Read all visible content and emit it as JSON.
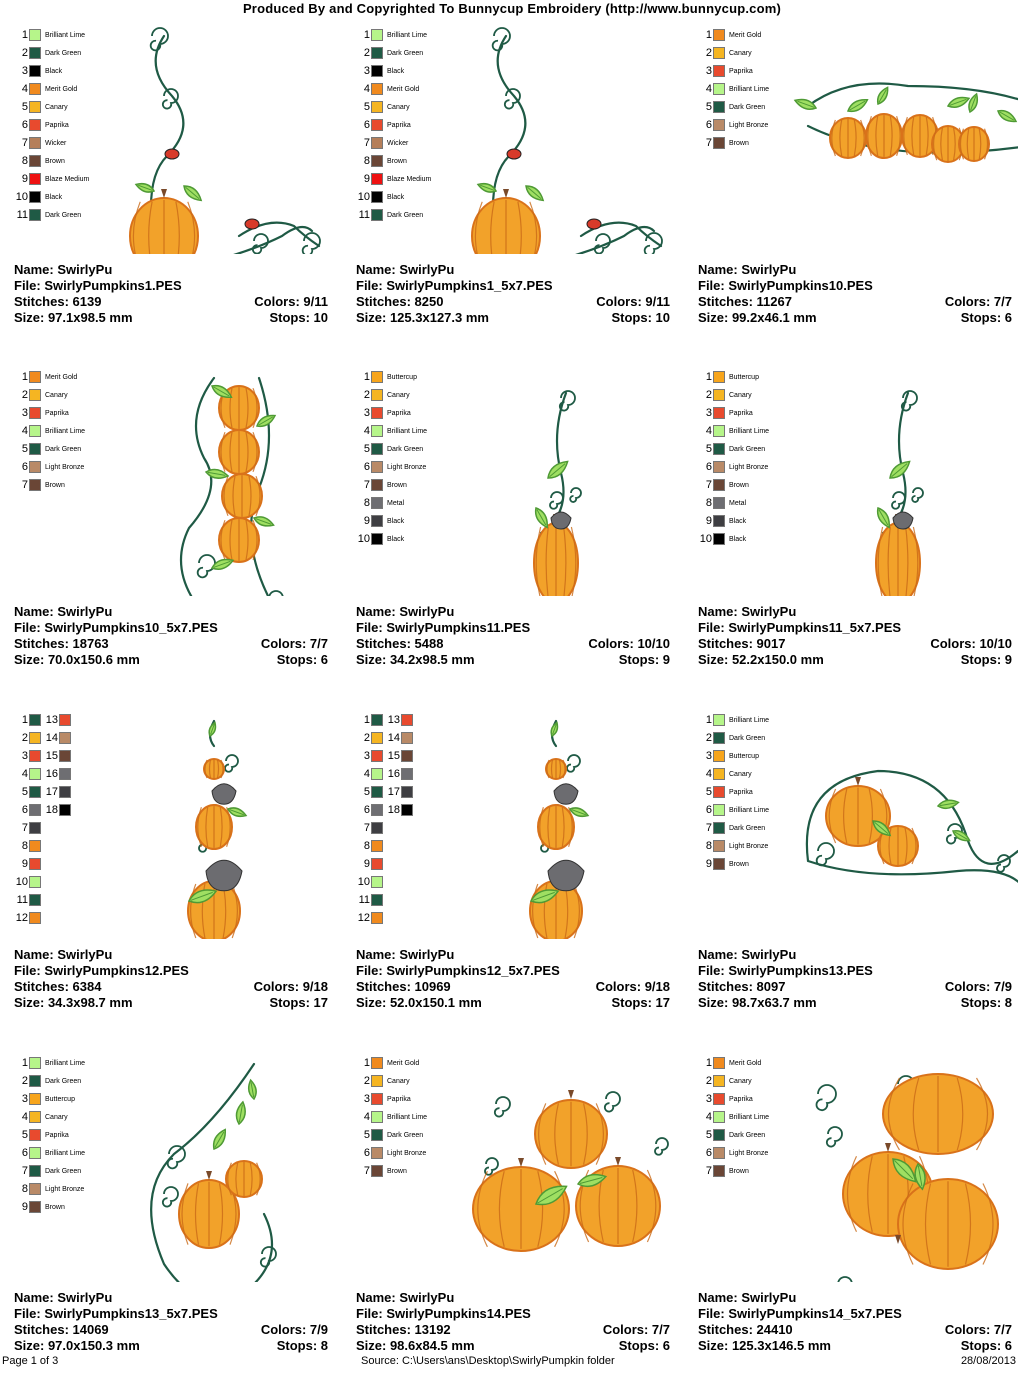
{
  "header": "Produced By and Copyrighted To Bunnycup Embroidery (http://www.bunnycup.com)",
  "labels": {
    "name": "Name:",
    "file": "File:",
    "stitches": "Stitches:",
    "size": "Size:",
    "colors": "Colors:",
    "stops": "Stops:"
  },
  "palette": {
    "Brilliant Lime": "#b6f58a",
    "Dark Green": "#1f5a45",
    "Black": "#000000",
    "Merit Gold": "#f08a1e",
    "Canary": "#f5b522",
    "Paprika": "#e84a2e",
    "Wicker": "#b57f5a",
    "Brown": "#6a4636",
    "Blaze Medium": "#ee1111",
    "Light Bronze": "#b98a67",
    "Buttercup": "#f7a51c",
    "Metal": "#6e6e72",
    "Charcoal": "#3e3e42"
  },
  "designs": [
    {
      "name": "SwirlyPu",
      "file": "SwirlyPumpkins1.PES",
      "stitches": "6139",
      "size": "97.1x98.5 mm",
      "colors": "9/11",
      "stops": "10",
      "motif": "corner-vine",
      "legend": [
        {
          "n": "1",
          "c": "Brilliant Lime",
          "label": "Brilliant Lime"
        },
        {
          "n": "2",
          "c": "Dark Green",
          "label": "Dark Green"
        },
        {
          "n": "3",
          "c": "Black",
          "label": "Black"
        },
        {
          "n": "4",
          "c": "Merit Gold",
          "label": "Merit Gold"
        },
        {
          "n": "5",
          "c": "Canary",
          "label": "Canary"
        },
        {
          "n": "6",
          "c": "Paprika",
          "label": "Paprika"
        },
        {
          "n": "7",
          "c": "Wicker",
          "label": "Wicker"
        },
        {
          "n": "8",
          "c": "Brown",
          "label": "Brown"
        },
        {
          "n": "9",
          "c": "Blaze Medium",
          "label": "Blaze Medium"
        },
        {
          "n": "10",
          "c": "Black",
          "label": "Black"
        },
        {
          "n": "11",
          "c": "Dark Green",
          "label": "Dark Green"
        }
      ]
    },
    {
      "name": "SwirlyPu",
      "file": "SwirlyPumpkins1_5x7.PES",
      "stitches": "8250",
      "size": "125.3x127.3 mm",
      "colors": "9/11",
      "stops": "10",
      "motif": "corner-vine",
      "legend": [
        {
          "n": "1",
          "c": "Brilliant Lime",
          "label": "Brilliant Lime"
        },
        {
          "n": "2",
          "c": "Dark Green",
          "label": "Dark Green"
        },
        {
          "n": "3",
          "c": "Black",
          "label": "Black"
        },
        {
          "n": "4",
          "c": "Merit Gold",
          "label": "Merit Gold"
        },
        {
          "n": "5",
          "c": "Canary",
          "label": "Canary"
        },
        {
          "n": "6",
          "c": "Paprika",
          "label": "Paprika"
        },
        {
          "n": "7",
          "c": "Wicker",
          "label": "Wicker"
        },
        {
          "n": "8",
          "c": "Brown",
          "label": "Brown"
        },
        {
          "n": "9",
          "c": "Blaze Medium",
          "label": "Blaze Medium"
        },
        {
          "n": "10",
          "c": "Black",
          "label": "Black"
        },
        {
          "n": "11",
          "c": "Dark Green",
          "label": "Dark Green"
        }
      ]
    },
    {
      "name": "SwirlyPu",
      "file": "SwirlyPumpkins10.PES",
      "stitches": "11267",
      "size": "99.2x46.1 mm",
      "colors": "7/7",
      "stops": "6",
      "motif": "row",
      "legend": [
        {
          "n": "1",
          "c": "Merit Gold",
          "label": "Merit Gold"
        },
        {
          "n": "2",
          "c": "Canary",
          "label": "Canary"
        },
        {
          "n": "3",
          "c": "Paprika",
          "label": "Paprika"
        },
        {
          "n": "4",
          "c": "Brilliant Lime",
          "label": "Brilliant Lime"
        },
        {
          "n": "5",
          "c": "Dark Green",
          "label": "Dark Green"
        },
        {
          "n": "6",
          "c": "Light Bronze",
          "label": "Light Bronze"
        },
        {
          "n": "7",
          "c": "Brown",
          "label": "Brown"
        }
      ]
    },
    {
      "name": "SwirlyPu",
      "file": "SwirlyPumpkins10_5x7.PES",
      "stitches": "18763",
      "size": "70.0x150.6 mm",
      "colors": "7/7",
      "stops": "6",
      "motif": "column",
      "legend": [
        {
          "n": "1",
          "c": "Merit Gold",
          "label": "Merit Gold"
        },
        {
          "n": "2",
          "c": "Canary",
          "label": "Canary"
        },
        {
          "n": "3",
          "c": "Paprika",
          "label": "Paprika"
        },
        {
          "n": "4",
          "c": "Brilliant Lime",
          "label": "Brilliant Lime"
        },
        {
          "n": "5",
          "c": "Dark Green",
          "label": "Dark Green"
        },
        {
          "n": "6",
          "c": "Light Bronze",
          "label": "Light Bronze"
        },
        {
          "n": "7",
          "c": "Brown",
          "label": "Brown"
        }
      ]
    },
    {
      "name": "SwirlyPu",
      "file": "SwirlyPumpkins11.PES",
      "stitches": "5488",
      "size": "34.2x98.5 mm",
      "colors": "10/10",
      "stops": "9",
      "motif": "tall-bird",
      "legend": [
        {
          "n": "1",
          "c": "Buttercup",
          "label": "Buttercup"
        },
        {
          "n": "2",
          "c": "Canary",
          "label": "Canary"
        },
        {
          "n": "3",
          "c": "Paprika",
          "label": "Paprika"
        },
        {
          "n": "4",
          "c": "Brilliant Lime",
          "label": "Brilliant Lime"
        },
        {
          "n": "5",
          "c": "Dark Green",
          "label": "Dark Green"
        },
        {
          "n": "6",
          "c": "Light Bronze",
          "label": "Light Bronze"
        },
        {
          "n": "7",
          "c": "Brown",
          "label": "Brown"
        },
        {
          "n": "8",
          "c": "Metal",
          "label": "Metal"
        },
        {
          "n": "9",
          "c": "Charcoal",
          "label": "Black"
        },
        {
          "n": "10",
          "c": "Black",
          "label": "Black"
        }
      ]
    },
    {
      "name": "SwirlyPu",
      "file": "SwirlyPumpkins11_5x7.PES",
      "stitches": "9017",
      "size": "52.2x150.0 mm",
      "colors": "10/10",
      "stops": "9",
      "motif": "tall-bird",
      "legend": [
        {
          "n": "1",
          "c": "Buttercup",
          "label": "Buttercup"
        },
        {
          "n": "2",
          "c": "Canary",
          "label": "Canary"
        },
        {
          "n": "3",
          "c": "Paprika",
          "label": "Paprika"
        },
        {
          "n": "4",
          "c": "Brilliant Lime",
          "label": "Brilliant Lime"
        },
        {
          "n": "5",
          "c": "Dark Green",
          "label": "Dark Green"
        },
        {
          "n": "6",
          "c": "Light Bronze",
          "label": "Light Bronze"
        },
        {
          "n": "7",
          "c": "Brown",
          "label": "Brown"
        },
        {
          "n": "8",
          "c": "Metal",
          "label": "Metal"
        },
        {
          "n": "9",
          "c": "Charcoal",
          "label": "Black"
        },
        {
          "n": "10",
          "c": "Black",
          "label": "Black"
        }
      ]
    },
    {
      "name": "SwirlyPu",
      "file": "SwirlyPumpkins12.PES",
      "stitches": "6384",
      "size": "34.3x98.7 mm",
      "colors": "9/18",
      "stops": "17",
      "motif": "stack",
      "legend": [
        {
          "n": "1",
          "c": "Dark Green"
        },
        {
          "n": "2",
          "c": "Canary"
        },
        {
          "n": "3",
          "c": "Paprika"
        },
        {
          "n": "4",
          "c": "Brilliant Lime"
        },
        {
          "n": "5",
          "c": "Dark Green"
        },
        {
          "n": "6",
          "c": "Metal"
        },
        {
          "n": "7",
          "c": "Charcoal"
        },
        {
          "n": "8",
          "c": "Merit Gold"
        },
        {
          "n": "9",
          "c": "Paprika"
        },
        {
          "n": "10",
          "c": "Brilliant Lime"
        },
        {
          "n": "11",
          "c": "Dark Green"
        },
        {
          "n": "12",
          "c": "Merit Gold"
        }
      ],
      "legend2": [
        {
          "n": "13",
          "c": "Paprika"
        },
        {
          "n": "14",
          "c": "Light Bronze"
        },
        {
          "n": "15",
          "c": "Brown"
        },
        {
          "n": "16",
          "c": "Metal"
        },
        {
          "n": "17",
          "c": "Charcoal"
        },
        {
          "n": "18",
          "c": "Black"
        }
      ]
    },
    {
      "name": "SwirlyPu",
      "file": "SwirlyPumpkins12_5x7.PES",
      "stitches": "10969",
      "size": "52.0x150.1 mm",
      "colors": "9/18",
      "stops": "17",
      "motif": "stack",
      "legend": [
        {
          "n": "1",
          "c": "Dark Green"
        },
        {
          "n": "2",
          "c": "Canary"
        },
        {
          "n": "3",
          "c": "Paprika"
        },
        {
          "n": "4",
          "c": "Brilliant Lime"
        },
        {
          "n": "5",
          "c": "Dark Green"
        },
        {
          "n": "6",
          "c": "Metal"
        },
        {
          "n": "7",
          "c": "Charcoal"
        },
        {
          "n": "8",
          "c": "Merit Gold"
        },
        {
          "n": "9",
          "c": "Paprika"
        },
        {
          "n": "10",
          "c": "Brilliant Lime"
        },
        {
          "n": "11",
          "c": "Dark Green"
        },
        {
          "n": "12",
          "c": "Merit Gold"
        }
      ],
      "legend2": [
        {
          "n": "13",
          "c": "Paprika"
        },
        {
          "n": "14",
          "c": "Light Bronze"
        },
        {
          "n": "15",
          "c": "Brown"
        },
        {
          "n": "16",
          "c": "Metal"
        },
        {
          "n": "17",
          "c": "Charcoal"
        },
        {
          "n": "18",
          "c": "Black"
        }
      ]
    },
    {
      "name": "SwirlyPu",
      "file": "SwirlyPumpkins13.PES",
      "stitches": "8097",
      "size": "98.7x63.7 mm",
      "colors": "7/9",
      "stops": "8",
      "motif": "swirl-pair",
      "legend": [
        {
          "n": "1",
          "c": "Brilliant Lime",
          "label": "Brilliant Lime"
        },
        {
          "n": "2",
          "c": "Dark Green",
          "label": "Dark Green"
        },
        {
          "n": "3",
          "c": "Buttercup",
          "label": "Buttercup"
        },
        {
          "n": "4",
          "c": "Canary",
          "label": "Canary"
        },
        {
          "n": "5",
          "c": "Paprika",
          "label": "Paprika"
        },
        {
          "n": "6",
          "c": "Brilliant Lime",
          "label": "Brilliant Lime"
        },
        {
          "n": "7",
          "c": "Dark Green",
          "label": "Dark Green"
        },
        {
          "n": "8",
          "c": "Light Bronze",
          "label": "Light Bronze"
        },
        {
          "n": "9",
          "c": "Brown",
          "label": "Brown"
        }
      ]
    },
    {
      "name": "SwirlyPu",
      "file": "SwirlyPumpkins13_5x7.PES",
      "stitches": "14069",
      "size": "97.0x150.3 mm",
      "colors": "7/9",
      "stops": "8",
      "motif": "swirl-tall",
      "legend": [
        {
          "n": "1",
          "c": "Brilliant Lime",
          "label": "Brilliant Lime"
        },
        {
          "n": "2",
          "c": "Dark Green",
          "label": "Dark Green"
        },
        {
          "n": "3",
          "c": "Buttercup",
          "label": "Buttercup"
        },
        {
          "n": "4",
          "c": "Canary",
          "label": "Canary"
        },
        {
          "n": "5",
          "c": "Paprika",
          "label": "Paprika"
        },
        {
          "n": "6",
          "c": "Brilliant Lime",
          "label": "Brilliant Lime"
        },
        {
          "n": "7",
          "c": "Dark Green",
          "label": "Dark Green"
        },
        {
          "n": "8",
          "c": "Light Bronze",
          "label": "Light Bronze"
        },
        {
          "n": "9",
          "c": "Brown",
          "label": "Brown"
        }
      ]
    },
    {
      "name": "SwirlyPu",
      "file": "SwirlyPumpkins14.PES",
      "stitches": "13192",
      "size": "98.6x84.5 mm",
      "colors": "7/7",
      "stops": "6",
      "motif": "trio",
      "legend": [
        {
          "n": "1",
          "c": "Merit Gold",
          "label": "Merit Gold"
        },
        {
          "n": "2",
          "c": "Canary",
          "label": "Canary"
        },
        {
          "n": "3",
          "c": "Paprika",
          "label": "Paprika"
        },
        {
          "n": "4",
          "c": "Brilliant Lime",
          "label": "Brilliant Lime"
        },
        {
          "n": "5",
          "c": "Dark Green",
          "label": "Dark Green"
        },
        {
          "n": "6",
          "c": "Light Bronze",
          "label": "Light Bronze"
        },
        {
          "n": "7",
          "c": "Brown",
          "label": "Brown"
        }
      ]
    },
    {
      "name": "SwirlyPu",
      "file": "SwirlyPumpkins14_5x7.PES",
      "stitches": "24410",
      "size": "125.3x146.5 mm",
      "colors": "7/7",
      "stops": "6",
      "motif": "trio-tall",
      "legend": [
        {
          "n": "1",
          "c": "Merit Gold",
          "label": "Merit Gold"
        },
        {
          "n": "2",
          "c": "Canary",
          "label": "Canary"
        },
        {
          "n": "3",
          "c": "Paprika",
          "label": "Paprika"
        },
        {
          "n": "4",
          "c": "Brilliant Lime",
          "label": "Brilliant Lime"
        },
        {
          "n": "5",
          "c": "Dark Green",
          "label": "Dark Green"
        },
        {
          "n": "6",
          "c": "Light Bronze",
          "label": "Light Bronze"
        },
        {
          "n": "7",
          "c": "Brown",
          "label": "Brown"
        }
      ]
    }
  ],
  "footer": {
    "page": "Page 1 of 3",
    "source": "Source: C:\\Users\\ans\\Desktop\\SwirlyPumpkin folder",
    "date": "28/08/2013"
  }
}
